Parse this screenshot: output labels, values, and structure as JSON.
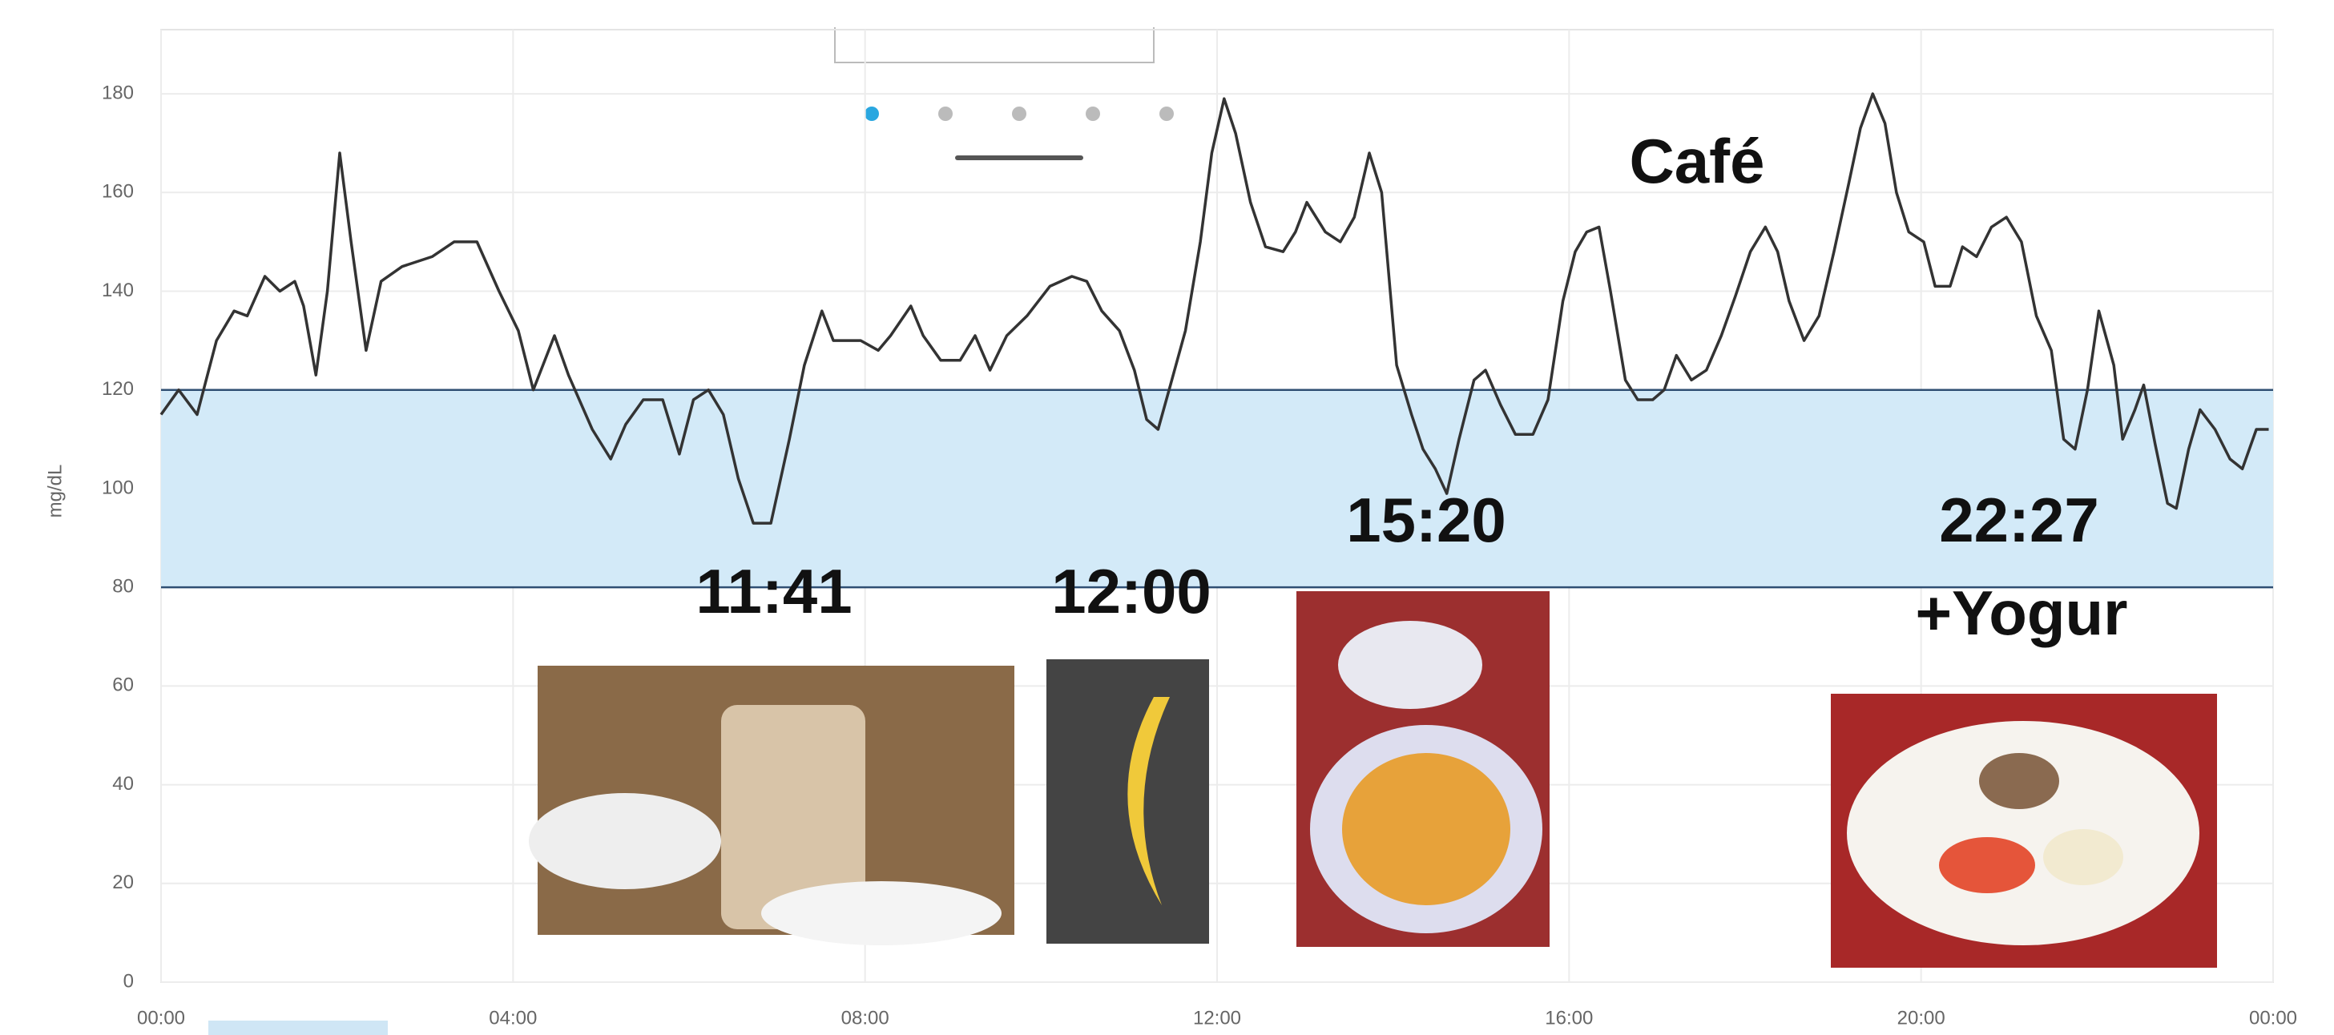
{
  "chart_data": {
    "type": "line",
    "y_label": "mg/dL",
    "x": [
      0,
      0.2,
      0.41,
      0.63,
      0.83,
      0.98,
      1.18,
      1.35,
      1.52,
      1.62,
      1.76,
      1.89,
      2.03,
      2.16,
      2.33,
      2.5,
      2.74,
      3.08,
      3.33,
      3.59,
      3.84,
      4.06,
      4.23,
      4.47,
      4.63,
      4.9,
      5.11,
      5.28,
      5.48,
      5.7,
      5.89,
      6.05,
      6.22,
      6.39,
      6.56,
      6.73,
      6.93,
      7.14,
      7.31,
      7.51,
      7.64,
      7.95,
      8.15,
      8.29,
      8.52,
      8.66,
      8.86,
      9.08,
      9.25,
      9.42,
      9.61,
      9.84,
      10.1,
      10.35,
      10.52,
      10.69,
      10.89,
      11.06,
      11.2,
      11.33,
      11.47,
      11.64,
      11.81,
      11.94,
      12.08,
      12.21,
      12.38,
      12.55,
      12.75,
      12.89,
      13.02,
      13.23,
      13.4,
      13.56,
      13.73,
      13.87,
      14.04,
      14.21,
      14.34,
      14.48,
      14.61,
      14.75,
      14.92,
      15.05,
      15.22,
      15.39,
      15.59,
      15.76,
      15.93,
      16.07,
      16.2,
      16.34,
      16.47,
      16.64,
      16.78,
      16.95,
      17.08,
      17.22,
      17.39,
      17.56,
      17.73,
      17.89,
      18.06,
      18.23,
      18.37,
      18.5,
      18.67,
      18.84,
      19.01,
      19.18,
      19.31,
      19.45,
      19.59,
      19.72,
      19.86,
      20.03,
      20.16,
      20.33,
      20.47,
      20.63,
      20.8,
      20.97,
      21.14,
      21.31,
      21.48,
      21.62,
      21.75,
      21.89,
      22.02,
      22.19,
      22.29,
      22.43,
      22.53,
      22.66,
      22.8,
      22.9,
      23.04,
      23.17,
      23.34,
      23.51,
      23.65,
      23.81,
      23.95
    ],
    "values": [
      115,
      120,
      115,
      130,
      136,
      135,
      143,
      140,
      142,
      137,
      123,
      140,
      168,
      150,
      128,
      142,
      145,
      147,
      150,
      150,
      140,
      132,
      120,
      131,
      123,
      112,
      106,
      113,
      118,
      118,
      107,
      118,
      120,
      115,
      102,
      93,
      93,
      110,
      125,
      136,
      130,
      130,
      128,
      131,
      137,
      131,
      126,
      126,
      131,
      124,
      131,
      135,
      141,
      143,
      142,
      136,
      132,
      124,
      114,
      112,
      121,
      132,
      150,
      168,
      179,
      172,
      158,
      149,
      148,
      152,
      158,
      152,
      150,
      155,
      168,
      160,
      125,
      115,
      108,
      104,
      99,
      110,
      122,
      124,
      117,
      111,
      111,
      118,
      138,
      148,
      152,
      153,
      140,
      122,
      118,
      118,
      120,
      127,
      122,
      124,
      131,
      139,
      148,
      153,
      148,
      138,
      130,
      135,
      148,
      162,
      173,
      180,
      174,
      160,
      152,
      150,
      141,
      141,
      149,
      147,
      153,
      155,
      150,
      135,
      128,
      110,
      108,
      120,
      136,
      125,
      110,
      116,
      121,
      109,
      97,
      96,
      108,
      116,
      112,
      106,
      104,
      112,
      112
    ],
    "color": "#333333",
    "target_range": [
      80,
      120
    ],
    "target_color": "#d3eaf8",
    "xlim": [
      0,
      24
    ],
    "xticks": [
      {
        "value": 0,
        "label": "00:00"
      },
      {
        "value": 4,
        "label": "04:00"
      },
      {
        "value": 8,
        "label": "08:00"
      },
      {
        "value": 12,
        "label": "12:00"
      },
      {
        "value": 16,
        "label": "16:00"
      },
      {
        "value": 20,
        "label": "20:00"
      },
      {
        "value": 24,
        "label": "00:00"
      }
    ],
    "ylim": [
      0,
      193
    ],
    "yticks": [
      0,
      20,
      40,
      60,
      80,
      100,
      120,
      140,
      160,
      180
    ],
    "grid": true,
    "annotations": [
      "Café",
      "11:41",
      "12:00",
      "15:20",
      "22:27",
      "+Yogur"
    ]
  }
}
